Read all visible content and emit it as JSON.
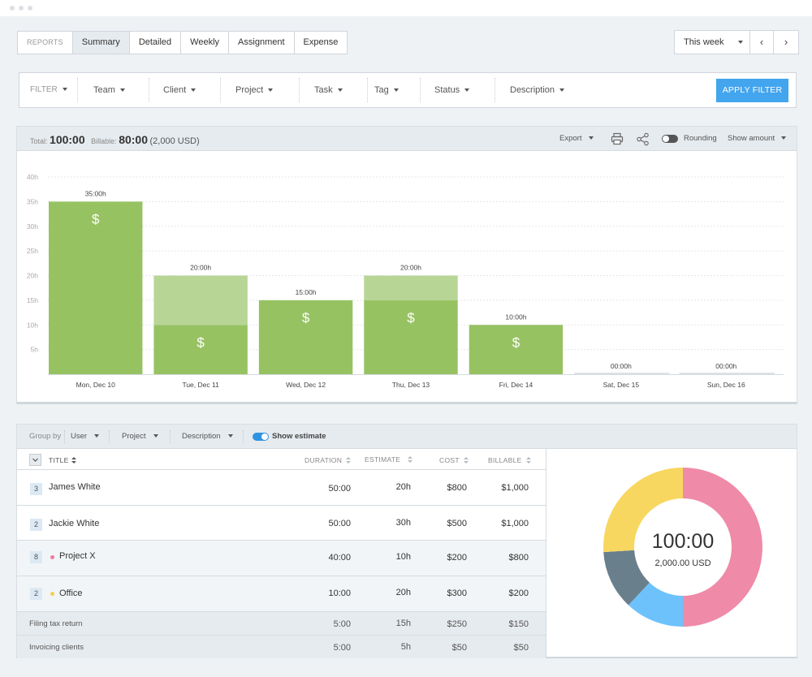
{
  "tabs": {
    "reports_label": "REPORTS",
    "items": [
      "Summary",
      "Detailed",
      "Weekly",
      "Assignment",
      "Expense"
    ]
  },
  "date_range": {
    "label": "This week",
    "prev": "‹",
    "next": "›"
  },
  "filter": {
    "label": "FILTER",
    "items": [
      "Team",
      "Client",
      "Project",
      "Task",
      "Tag",
      "Status",
      "Description"
    ],
    "apply_label": "APPLY FILTER"
  },
  "summary": {
    "total_label": "Total:",
    "total_value": "100:00",
    "billable_label": "Billable:",
    "billable_value": "80:00",
    "billable_amount": "(2,000 USD)"
  },
  "chart_controls": {
    "export_label": "Export",
    "rounding_label": "Rounding",
    "show_amount_label": "Show amount",
    "rounding_on": false
  },
  "chart_data": {
    "type": "bar",
    "categories": [
      "Mon, Dec 10",
      "Tue, Dec 11",
      "Wed, Dec 12",
      "Thu, Dec 13",
      "Fri, Dec 14",
      "Sat, Dec 15",
      "Sun, Dec 16"
    ],
    "bar_labels": [
      "35:00h",
      "20:00h",
      "15:00h",
      "20:00h",
      "10:00h",
      "00:00h",
      "00:00h"
    ],
    "series": [
      {
        "values": [
          35,
          10,
          15,
          15,
          10,
          0,
          0
        ],
        "color": "#97c262"
      },
      {
        "values": [
          0,
          10,
          0,
          5,
          0,
          0,
          0
        ],
        "color": "#b7d595"
      }
    ],
    "billable_marker": "$",
    "yticks": [
      "5h",
      "10h",
      "15h",
      "20h",
      "25h",
      "30h",
      "35h",
      "40h"
    ],
    "ylim": [
      0,
      40
    ],
    "grid": true
  },
  "group_by": {
    "label": "Group by",
    "options": [
      "User",
      "Project",
      "Description"
    ],
    "show_estimate_label": "Show estimate",
    "show_estimate_on": true
  },
  "table": {
    "columns": {
      "title": "TITLE",
      "duration": "DURATION",
      "estimate": "ESTIMATE",
      "cost": "COST",
      "billable": "BILLABLE"
    },
    "rows": [
      {
        "count": "3",
        "title": "James White",
        "duration": "50:00",
        "estimate": "20h",
        "cost": "$800",
        "billable": "$1,000"
      },
      {
        "count": "2",
        "title": "Jackie White",
        "duration": "50:00",
        "estimate": "30h",
        "cost": "$500",
        "billable": "$1,000"
      },
      {
        "count": "8",
        "title": "Project X",
        "dot_color": "#f07c9a",
        "duration": "40:00",
        "estimate": "10h",
        "cost": "$200",
        "billable": "$800"
      },
      {
        "count": "2",
        "title": "Office",
        "dot_color": "#f6cd4e",
        "duration": "10:00",
        "estimate": "20h",
        "cost": "$300",
        "billable": "$200"
      },
      {
        "title": "Filing tax return",
        "duration": "5:00",
        "estimate": "15h",
        "cost": "$250",
        "billable": "$150"
      },
      {
        "title": "Invoicing clients",
        "duration": "5:00",
        "estimate": "5h",
        "cost": "$50",
        "billable": "$50"
      }
    ]
  },
  "donut": {
    "total": "100:00",
    "amount": "2,000.00 USD",
    "slices": [
      {
        "value": 50,
        "color": "#ef8aa8"
      },
      {
        "value": 12,
        "color": "#6ec2fb"
      },
      {
        "value": 12,
        "color": "#6a7f8c"
      },
      {
        "value": 26,
        "color": "#f8d760"
      }
    ]
  }
}
